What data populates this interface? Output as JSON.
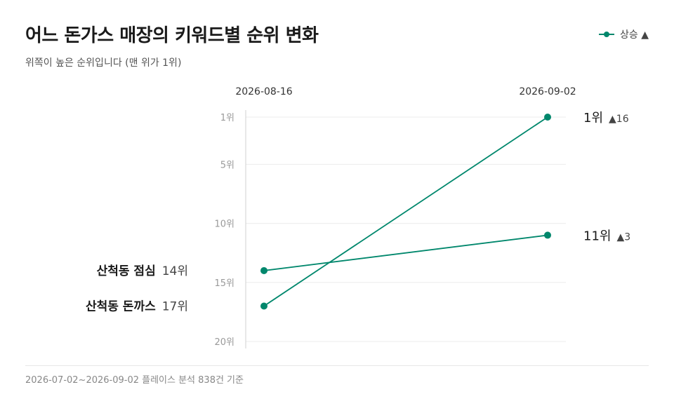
{
  "header": {
    "title": "어느 돈가스 매장의 키워드별 순위 변화",
    "subtitle": "위쪽이 높은 순위입니다 (맨 위가 1위)"
  },
  "legend": {
    "label": "상승 ▲",
    "color": "#00876c"
  },
  "footer": {
    "note": "2026-07-02~2026-09-02 플레이스 분석 838건 기준"
  },
  "chart_data": {
    "type": "line",
    "title": "어느 돈가스 매장의 키워드별 순위 변화",
    "subtitle": "위쪽이 높은 순위입니다 (맨 위가 1위)",
    "x": [
      "2026-08-16",
      "2026-09-02"
    ],
    "y_ticks": [
      1,
      5,
      10,
      15,
      20
    ],
    "y_tick_labels": [
      "1위",
      "5위",
      "10위",
      "15위",
      "20위"
    ],
    "ylim": [
      1,
      20
    ],
    "y_reversed": true,
    "grid": true,
    "legend": {
      "entries": [
        "상승 ▲"
      ],
      "placement": "top-right"
    },
    "series": [
      {
        "name": "산척동 점심",
        "values": [
          14,
          11
        ],
        "start_label": "14위",
        "end_label": "11위",
        "change_label": "▲3",
        "color": "#00876c"
      },
      {
        "name": "산척동 돈까스",
        "values": [
          17,
          1
        ],
        "start_label": "17위",
        "end_label": "1위",
        "change_label": "▲16",
        "color": "#00876c"
      }
    ]
  }
}
